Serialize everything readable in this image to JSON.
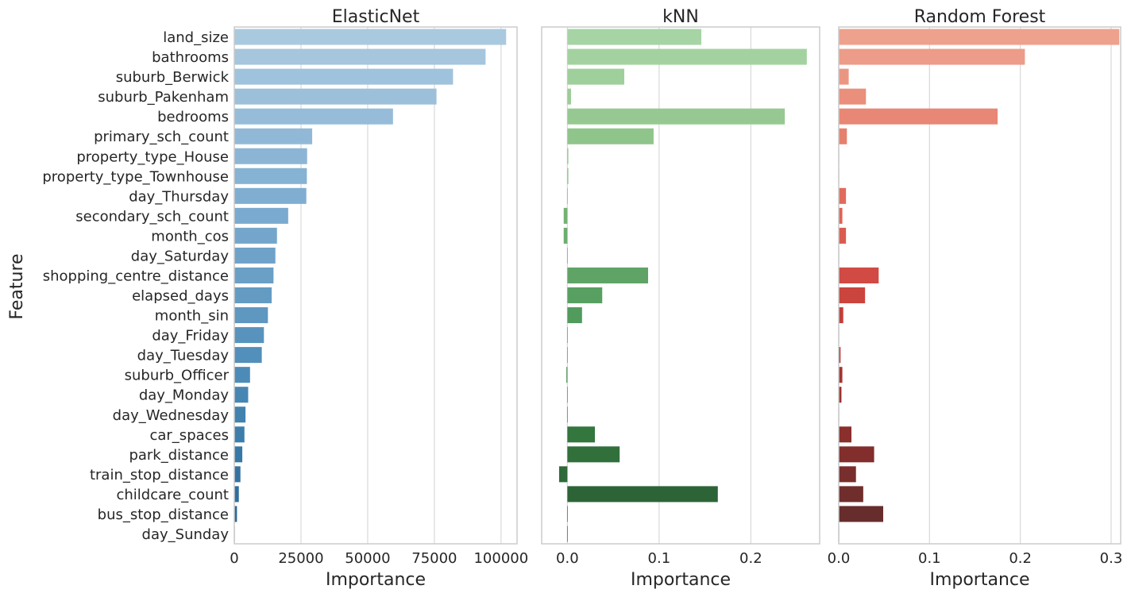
{
  "ylabel": "Feature",
  "chart_data": [
    {
      "type": "bar",
      "orientation": "horizontal",
      "title": "ElasticNet",
      "xlabel": "Importance",
      "ylabel": "Feature",
      "xlim": [
        0,
        106000
      ],
      "xticks": [
        0,
        25000,
        50000,
        75000,
        100000
      ],
      "xtick_labels": [
        "0",
        "25000",
        "50000",
        "75000",
        "100000"
      ],
      "grid": "vertical",
      "palette": "Blues_d",
      "colors": [
        "#a9c9de",
        "#a5c6dd",
        "#9fc3dc",
        "#9cc0da",
        "#96bcd9",
        "#91b9d7",
        "#8cb5d5",
        "#86b2d3",
        "#80aed1",
        "#7aaacf",
        "#74a6cc",
        "#6ea2c9",
        "#6a9fc6",
        "#649bc3",
        "#5e97c0",
        "#5893bd",
        "#528fba",
        "#4c8bb7",
        "#4686b3",
        "#4182af",
        "#3c7dab",
        "#3878a6",
        "#3473a1",
        "#306e9c",
        "#2c6997",
        "#296492"
      ],
      "categories": [
        "land_size",
        "bathrooms",
        "suburb_Berwick",
        "suburb_Pakenham",
        "bedrooms",
        "primary_sch_count",
        "property_type_House",
        "property_type_Townhouse",
        "day_Thursday",
        "secondary_sch_count",
        "month_cos",
        "day_Saturday",
        "shopping_centre_distance",
        "elapsed_days",
        "month_sin",
        "day_Friday",
        "day_Tuesday",
        "suburb_Officer",
        "day_Monday",
        "day_Wednesday",
        "car_spaces",
        "park_distance",
        "train_stop_distance",
        "childcare_count",
        "bus_stop_distance",
        "day_Sunday"
      ],
      "values": [
        101900,
        94200,
        82000,
        75800,
        59500,
        29200,
        27300,
        27200,
        27000,
        20200,
        16000,
        15400,
        14700,
        14000,
        12600,
        11100,
        10300,
        5900,
        5200,
        4200,
        3800,
        3000,
        2300,
        1700,
        1000,
        0
      ]
    },
    {
      "type": "bar",
      "orientation": "horizontal",
      "title": "kNN",
      "xlabel": "Importance",
      "xlim": [
        -0.028,
        0.275
      ],
      "xticks": [
        0,
        0.1,
        0.2
      ],
      "xtick_labels": [
        "0.0",
        "0.1",
        "0.2"
      ],
      "grid": "vertical",
      "palette": "Greens_d",
      "colors": [
        "#a6d4a4",
        "#a3d2a0",
        "#9fcf9b",
        "#9ccc97",
        "#96c991",
        "#8fc48a",
        "#89c084",
        "#82bc7e",
        "#7bb779",
        "#74b273",
        "#6dad6e",
        "#66a96a",
        "#5fa466",
        "#58a061",
        "#519b5c",
        "#4a9658",
        "#449052",
        "#3f8a4c",
        "#3a8447",
        "#367d42",
        "#33763e",
        "#31703b",
        "#2f6a39",
        "#2d6437",
        "#2b5e35",
        "#2a5833"
      ],
      "categories": [
        "land_size",
        "bathrooms",
        "suburb_Berwick",
        "suburb_Pakenham",
        "bedrooms",
        "primary_sch_count",
        "property_type_House",
        "property_type_Townhouse",
        "day_Thursday",
        "secondary_sch_count",
        "month_cos",
        "day_Saturday",
        "shopping_centre_distance",
        "elapsed_days",
        "month_sin",
        "day_Friday",
        "day_Tuesday",
        "suburb_Officer",
        "day_Monday",
        "day_Wednesday",
        "car_spaces",
        "park_distance",
        "train_stop_distance",
        "childcare_count",
        "bus_stop_distance",
        "day_Sunday"
      ],
      "values": [
        0.146,
        0.261,
        0.062,
        0.004,
        0.237,
        0.094,
        0.001,
        0.001,
        0.0005,
        -0.004,
        -0.004,
        0.0,
        0.088,
        0.038,
        0.016,
        0.0,
        0.0,
        -0.001,
        0.0005,
        0.0,
        0.03,
        0.057,
        -0.009,
        0.164,
        0.0,
        0.0
      ]
    },
    {
      "type": "bar",
      "orientation": "horizontal",
      "title": "Random Forest",
      "xlabel": "Importance",
      "xlim": [
        0,
        0.3105
      ],
      "xticks": [
        0,
        0.1,
        0.2,
        0.3
      ],
      "xtick_labels": [
        "0.0",
        "0.1",
        "0.2",
        "0.3"
      ],
      "grid": "vertical",
      "palette": "Reds_d",
      "colors": [
        "#eea18d",
        "#ec9c88",
        "#eb9682",
        "#e98f7b",
        "#e88775",
        "#e6806e",
        "#e47a68",
        "#e27262",
        "#e06b5b",
        "#dd6455",
        "#da5c4f",
        "#d75449",
        "#d14a43",
        "#cb443e",
        "#c23f3a",
        "#b83b37",
        "#ae3734",
        "#a53431",
        "#9c312e",
        "#93302d",
        "#8a2f2c",
        "#812e2c",
        "#782e2c",
        "#6f2d2c",
        "#662d2c",
        "#5d2c2b"
      ],
      "categories": [
        "land_size",
        "bathrooms",
        "suburb_Berwick",
        "suburb_Pakenham",
        "bedrooms",
        "primary_sch_count",
        "property_type_House",
        "property_type_Townhouse",
        "day_Thursday",
        "secondary_sch_count",
        "month_cos",
        "day_Saturday",
        "shopping_centre_distance",
        "elapsed_days",
        "month_sin",
        "day_Friday",
        "day_Tuesday",
        "suburb_Officer",
        "day_Monday",
        "day_Wednesday",
        "car_spaces",
        "park_distance",
        "train_stop_distance",
        "childcare_count",
        "bus_stop_distance",
        "day_Sunday"
      ],
      "values": [
        0.309,
        0.205,
        0.011,
        0.03,
        0.175,
        0.009,
        0.0,
        0.0,
        0.008,
        0.004,
        0.008,
        0.0,
        0.044,
        0.029,
        0.005,
        0.0,
        0.002,
        0.004,
        0.003,
        0.0,
        0.014,
        0.039,
        0.019,
        0.027,
        0.049,
        0.0
      ]
    }
  ]
}
